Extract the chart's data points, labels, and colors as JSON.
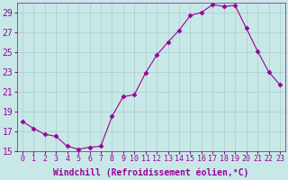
{
  "x": [
    0,
    1,
    2,
    3,
    4,
    5,
    6,
    7,
    8,
    9,
    10,
    11,
    12,
    13,
    14,
    15,
    16,
    17,
    18,
    19,
    20,
    21,
    22,
    23
  ],
  "y": [
    18.0,
    17.3,
    16.7,
    16.5,
    15.5,
    15.2,
    15.4,
    15.5,
    18.5,
    20.5,
    20.7,
    22.9,
    24.7,
    26.0,
    27.2,
    28.7,
    29.0,
    29.8,
    29.6,
    29.7,
    27.4,
    25.1,
    23.0,
    21.7
  ],
  "line_color": "#990099",
  "marker": "D",
  "marker_size": 2.5,
  "bg_color": "#c8e8e8",
  "grid_color": "#aacccc",
  "xlabel": "Windchill (Refroidissement éolien,°C)",
  "ylabel": "",
  "ylim": [
    15,
    30
  ],
  "yticks": [
    15,
    17,
    19,
    21,
    23,
    25,
    27,
    29
  ],
  "xlim": [
    -0.5,
    23.5
  ],
  "xticks": [
    0,
    1,
    2,
    3,
    4,
    5,
    6,
    7,
    8,
    9,
    10,
    11,
    12,
    13,
    14,
    15,
    16,
    17,
    18,
    19,
    20,
    21,
    22,
    23
  ],
  "xlabel_fontsize": 7,
  "tick_fontsize": 6,
  "ytick_fontsize": 7
}
